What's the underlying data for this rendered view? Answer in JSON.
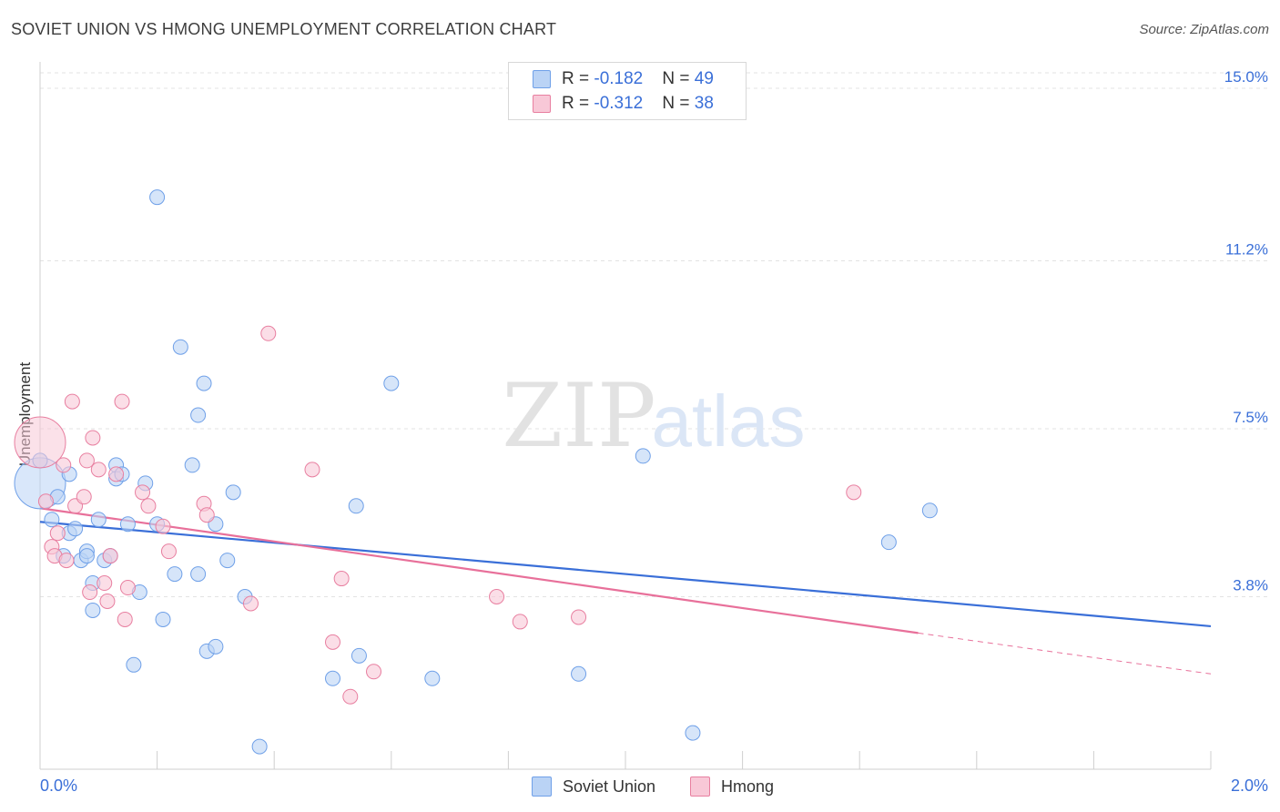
{
  "title": "SOVIET UNION VS HMONG UNEMPLOYMENT CORRELATION CHART",
  "source": "Source: ZipAtlas.com",
  "watermark": {
    "zip": "ZIP",
    "atlas": "atlas"
  },
  "legend": {
    "rows": [
      {
        "r_label": "R = ",
        "r_value": "-0.182",
        "n_label": "N = ",
        "n_value": "49",
        "color": "#6fa0e8",
        "fill": "#bad3f5"
      },
      {
        "r_label": "R = ",
        "r_value": "-0.312",
        "n_label": "N = ",
        "n_value": "38",
        "color": "#e87fa0",
        "fill": "#f8c8d7"
      }
    ]
  },
  "bottom_legend": [
    {
      "label": "Soviet Union",
      "fill": "#bad3f5",
      "stroke": "#6fa0e8"
    },
    {
      "label": "Hmong",
      "fill": "#f8c8d7",
      "stroke": "#e87fa0"
    }
  ],
  "chart_data": {
    "type": "scatter",
    "title": "SOVIET UNION VS HMONG UNEMPLOYMENT CORRELATION CHART",
    "xlabel": "",
    "ylabel": "Unemployment",
    "xlim": [
      0.0,
      2.0
    ],
    "ylim": [
      0.0,
      15.0
    ],
    "y_ticks": [
      3.8,
      7.5,
      11.2,
      15.0
    ],
    "y_tick_labels": [
      "3.8%",
      "7.5%",
      "11.2%",
      "15.0%"
    ],
    "x_tick_labels": [
      "0.0%",
      "2.0%"
    ],
    "series": [
      {
        "name": "Soviet Union",
        "color": "#3a6fd8",
        "fill": "#bad3f5",
        "stroke": "#6fa0e8",
        "r": -0.182,
        "n": 49,
        "trend": {
          "x0": 0.0,
          "y0": 5.45,
          "x1": 2.0,
          "y1": 3.15
        },
        "points": [
          {
            "x": 0.0,
            "y": 6.3,
            "big": true
          },
          {
            "x": 0.0,
            "y": 6.8
          },
          {
            "x": 0.02,
            "y": 5.5
          },
          {
            "x": 0.03,
            "y": 6.0
          },
          {
            "x": 0.04,
            "y": 4.7
          },
          {
            "x": 0.05,
            "y": 5.2
          },
          {
            "x": 0.05,
            "y": 6.5
          },
          {
            "x": 0.06,
            "y": 5.3
          },
          {
            "x": 0.07,
            "y": 4.6
          },
          {
            "x": 0.08,
            "y": 4.8
          },
          {
            "x": 0.08,
            "y": 4.7
          },
          {
            "x": 0.09,
            "y": 3.5
          },
          {
            "x": 0.09,
            "y": 4.1
          },
          {
            "x": 0.1,
            "y": 5.5
          },
          {
            "x": 0.11,
            "y": 4.6
          },
          {
            "x": 0.12,
            "y": 4.7
          },
          {
            "x": 0.13,
            "y": 6.7
          },
          {
            "x": 0.13,
            "y": 6.4
          },
          {
            "x": 0.14,
            "y": 6.5
          },
          {
            "x": 0.15,
            "y": 5.4
          },
          {
            "x": 0.16,
            "y": 2.3
          },
          {
            "x": 0.17,
            "y": 3.9
          },
          {
            "x": 0.18,
            "y": 6.3
          },
          {
            "x": 0.2,
            "y": 12.6
          },
          {
            "x": 0.2,
            "y": 5.4
          },
          {
            "x": 0.21,
            "y": 3.3
          },
          {
            "x": 0.23,
            "y": 4.3
          },
          {
            "x": 0.24,
            "y": 9.3
          },
          {
            "x": 0.26,
            "y": 6.7
          },
          {
            "x": 0.27,
            "y": 7.8
          },
          {
            "x": 0.27,
            "y": 4.3
          },
          {
            "x": 0.28,
            "y": 8.5
          },
          {
            "x": 0.285,
            "y": 2.6
          },
          {
            "x": 0.3,
            "y": 2.7
          },
          {
            "x": 0.3,
            "y": 5.4
          },
          {
            "x": 0.32,
            "y": 4.6
          },
          {
            "x": 0.33,
            "y": 6.1
          },
          {
            "x": 0.35,
            "y": 3.8
          },
          {
            "x": 0.375,
            "y": 0.5
          },
          {
            "x": 0.5,
            "y": 2.0
          },
          {
            "x": 0.54,
            "y": 5.8
          },
          {
            "x": 0.545,
            "y": 2.5
          },
          {
            "x": 0.6,
            "y": 8.5
          },
          {
            "x": 0.67,
            "y": 2.0
          },
          {
            "x": 0.92,
            "y": 2.1
          },
          {
            "x": 1.03,
            "y": 6.9
          },
          {
            "x": 1.115,
            "y": 0.8
          },
          {
            "x": 1.45,
            "y": 5.0
          },
          {
            "x": 1.52,
            "y": 5.7
          }
        ]
      },
      {
        "name": "Hmong",
        "color": "#e8709a",
        "fill": "#f8c8d7",
        "stroke": "#e87fa0",
        "r": -0.312,
        "n": 38,
        "trend": {
          "x0": 0.0,
          "y0": 5.75,
          "x1": 1.5,
          "y1": 3.0,
          "dash_x1": 2.0,
          "dash_y1": 2.1
        },
        "points": [
          {
            "x": 0.0,
            "y": 7.2,
            "big": true
          },
          {
            "x": 0.01,
            "y": 5.9
          },
          {
            "x": 0.02,
            "y": 4.9
          },
          {
            "x": 0.025,
            "y": 4.7
          },
          {
            "x": 0.03,
            "y": 5.2
          },
          {
            "x": 0.04,
            "y": 6.7
          },
          {
            "x": 0.045,
            "y": 4.6
          },
          {
            "x": 0.055,
            "y": 8.1
          },
          {
            "x": 0.06,
            "y": 5.8
          },
          {
            "x": 0.075,
            "y": 6.0
          },
          {
            "x": 0.08,
            "y": 6.8
          },
          {
            "x": 0.085,
            "y": 3.9
          },
          {
            "x": 0.09,
            "y": 7.3
          },
          {
            "x": 0.1,
            "y": 6.6
          },
          {
            "x": 0.11,
            "y": 4.1
          },
          {
            "x": 0.115,
            "y": 3.7
          },
          {
            "x": 0.12,
            "y": 4.7
          },
          {
            "x": 0.13,
            "y": 6.5
          },
          {
            "x": 0.14,
            "y": 8.1
          },
          {
            "x": 0.145,
            "y": 3.3
          },
          {
            "x": 0.15,
            "y": 4.0
          },
          {
            "x": 0.175,
            "y": 6.1
          },
          {
            "x": 0.185,
            "y": 5.8
          },
          {
            "x": 0.21,
            "y": 5.35
          },
          {
            "x": 0.22,
            "y": 4.8
          },
          {
            "x": 0.28,
            "y": 5.85
          },
          {
            "x": 0.285,
            "y": 5.6
          },
          {
            "x": 0.36,
            "y": 3.65
          },
          {
            "x": 0.39,
            "y": 9.6
          },
          {
            "x": 0.465,
            "y": 6.6
          },
          {
            "x": 0.5,
            "y": 2.8
          },
          {
            "x": 0.515,
            "y": 4.2
          },
          {
            "x": 0.53,
            "y": 1.6
          },
          {
            "x": 0.57,
            "y": 2.15
          },
          {
            "x": 0.78,
            "y": 3.8
          },
          {
            "x": 0.82,
            "y": 3.25
          },
          {
            "x": 0.92,
            "y": 3.35
          },
          {
            "x": 1.39,
            "y": 6.1
          }
        ]
      }
    ]
  }
}
